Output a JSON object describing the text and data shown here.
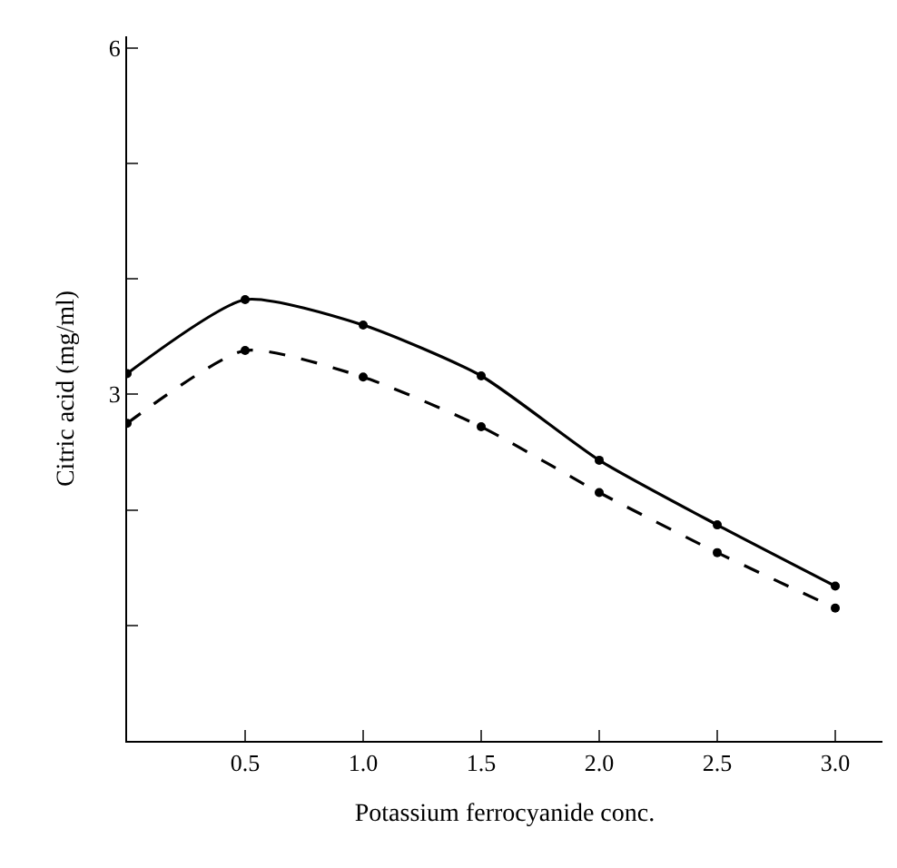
{
  "chart_data": {
    "type": "line",
    "xlabel": "Potassium ferrocyanide conc.",
    "ylabel": "Citric acid (mg/ml)",
    "x": [
      0,
      0.5,
      1.0,
      1.5,
      2.0,
      2.5,
      3.0
    ],
    "series": [
      {
        "color": "#000000",
        "line_style": "solid",
        "values": [
          3.18,
          3.82,
          3.6,
          3.16,
          2.43,
          1.87,
          1.34
        ]
      },
      {
        "color": "#000000",
        "line_style": "dashed",
        "values": [
          2.75,
          3.38,
          3.15,
          2.72,
          2.15,
          1.63,
          1.15
        ]
      }
    ],
    "marker": "circle",
    "xlim": [
      0,
      3.2
    ],
    "ylim": [
      0,
      6.1
    ],
    "xticks": [
      0.5,
      {
        "value": 1,
        "label": "1.0"
      },
      1.5,
      {
        "value": 2,
        "label": "2.0"
      },
      2.5,
      {
        "value": 3,
        "label": "3.0"
      }
    ],
    "yticks": [
      {
        "value": 1,
        "label": null
      },
      {
        "value": 2,
        "label": null
      },
      3,
      {
        "value": 4,
        "label": null
      },
      {
        "value": 5,
        "label": null
      },
      6
    ]
  }
}
